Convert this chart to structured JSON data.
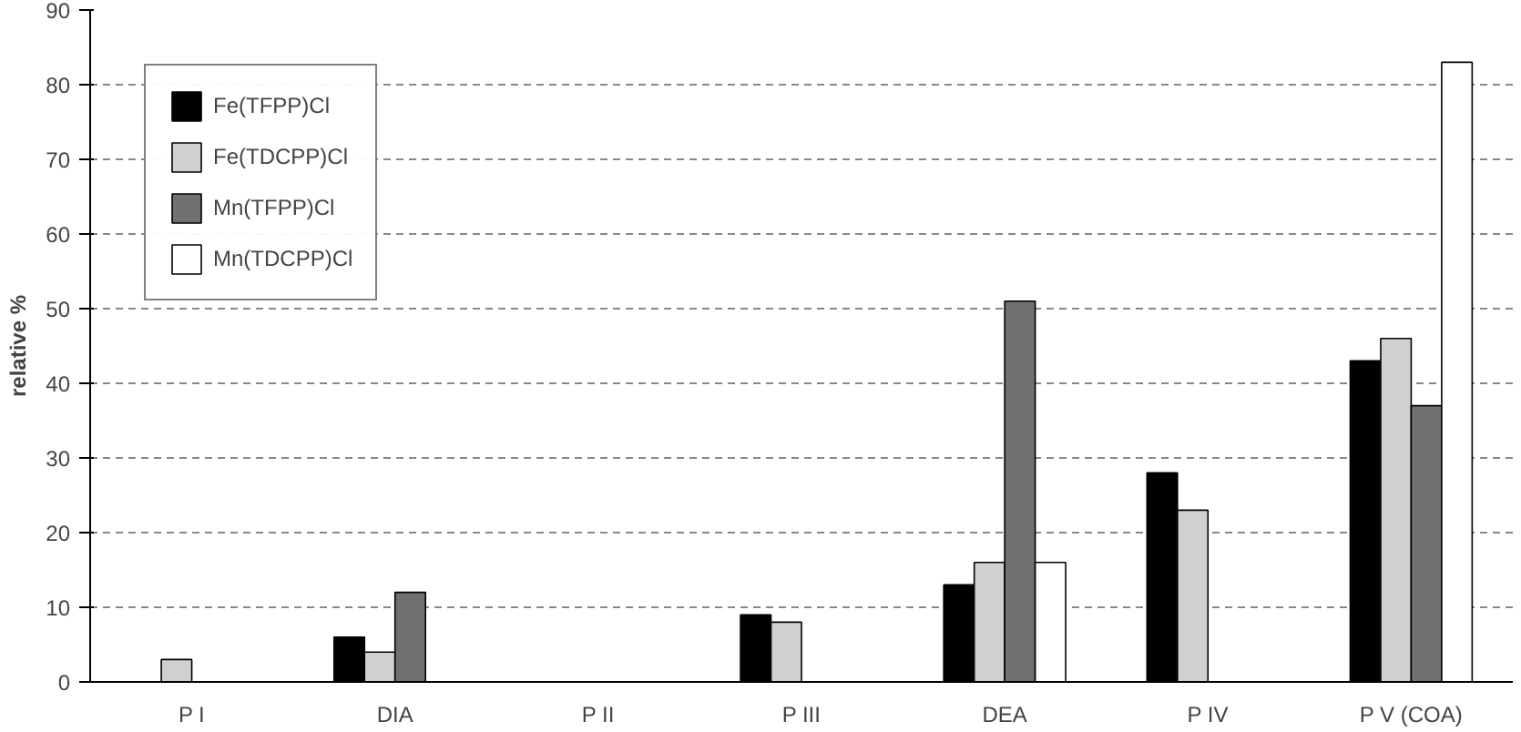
{
  "chart_data": {
    "type": "bar",
    "ylabel": "relative %",
    "categories": [
      "P I",
      "DIA",
      "P II",
      "P III",
      "DEA",
      "P IV",
      "P V (COA)"
    ],
    "series": [
      {
        "name": "Fe(TFPP)Cl",
        "color": "#000000",
        "values": [
          null,
          6,
          null,
          9,
          13,
          28,
          43
        ]
      },
      {
        "name": "Fe(TDCPP)Cl",
        "color": "#d0d0d0",
        "values": [
          3,
          4,
          null,
          8,
          16,
          23,
          46
        ]
      },
      {
        "name": "Mn(TFPP)Cl",
        "color": "#707070",
        "values": [
          null,
          12,
          null,
          null,
          51,
          null,
          37
        ]
      },
      {
        "name": "Mn(TDCPP)Cl",
        "color": "#ffffff",
        "values": [
          null,
          null,
          null,
          null,
          16,
          null,
          83
        ]
      }
    ],
    "ylim": [
      0,
      90
    ],
    "yticks": [
      0,
      10,
      20,
      30,
      40,
      50,
      60,
      70,
      80,
      90
    ],
    "grid": "y",
    "legend": "top left"
  }
}
